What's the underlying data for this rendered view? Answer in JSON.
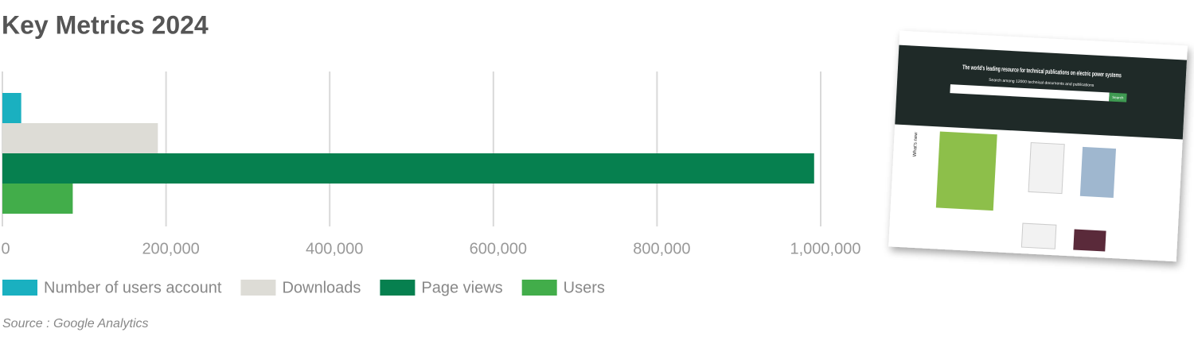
{
  "chart_data": {
    "type": "hbar",
    "title": "Key Metrics 2024",
    "series": [
      {
        "name": "Number of users account",
        "color": "#1ab0c0",
        "values": [
          23000
        ]
      },
      {
        "name": "Downloads",
        "color": "#dddcd6",
        "values": [
          190000
        ]
      },
      {
        "name": "Page views",
        "color": "#06804f",
        "values": [
          992000
        ]
      },
      {
        "name": "Users",
        "color": "#42ad4a",
        "values": [
          86000
        ]
      }
    ],
    "xlim": [
      0,
      1000000
    ],
    "xticks": [
      0,
      {
        "value": 200000,
        "label": "200,000"
      },
      {
        "value": 400000,
        "label": "400,000"
      },
      {
        "value": 600000,
        "label": "600,000"
      },
      {
        "value": 800000,
        "label": "800,000"
      },
      {
        "value": 1000000,
        "label": "1,000,000"
      }
    ],
    "grid": true,
    "source": "Source : Google Analytics"
  },
  "inset": {
    "headline": "The world's leading resource for technical publications on electric power systems",
    "subline": "Search among 12000 technical documents and publications",
    "button": "Search",
    "section": "What's new"
  }
}
